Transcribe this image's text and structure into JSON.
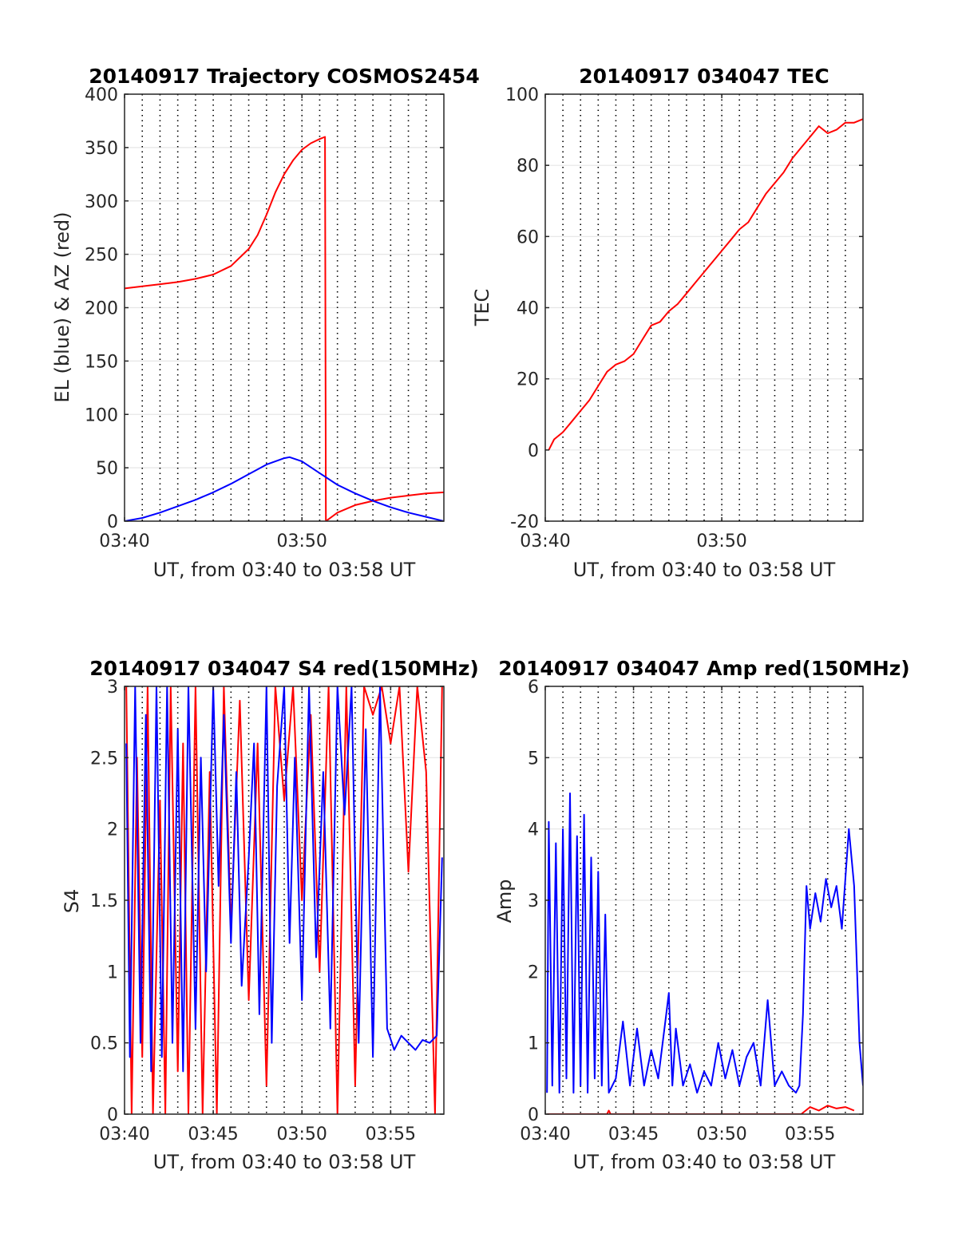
{
  "figure": {
    "background": "#ffffff",
    "axis_color": "#262626",
    "grid_color": "#e6e6e6",
    "series_colors": {
      "red": "#ff0000",
      "blue": "#0000ff"
    }
  },
  "chart_data": [
    {
      "id": "trajectory",
      "type": "line",
      "title": "20140917 Trajectory COSMOS2454",
      "xlabel": "UT, from 03:40 to 03:58 UT",
      "ylabel": "EL (blue) & AZ (red)",
      "x_unit": "minutes after 03:40 UT",
      "xlim": [
        0,
        18
      ],
      "ylim": [
        0,
        400
      ],
      "xticks": [
        0,
        10
      ],
      "xtick_labels": [
        "03:40",
        "03:50"
      ],
      "yticks": [
        0,
        50,
        100,
        150,
        200,
        250,
        300,
        350,
        400
      ],
      "ytick_labels": [
        "0",
        "50",
        "100",
        "150",
        "200",
        "250",
        "300",
        "350",
        "400"
      ],
      "dotted_grid_interval_min": 1,
      "series": [
        {
          "color": "#ff0000",
          "x": [
            0,
            1,
            2,
            3,
            4,
            5,
            6,
            7,
            7.5,
            8,
            8.5,
            9,
            9.5,
            10,
            10.5,
            11,
            11.3,
            11.35,
            12,
            13,
            14,
            15,
            16,
            17,
            18
          ],
          "y": [
            218,
            220,
            222,
            224,
            227,
            231,
            239,
            255,
            268,
            287,
            308,
            325,
            338,
            348,
            354,
            358,
            360,
            0,
            8,
            15,
            19,
            22,
            24,
            26,
            27
          ]
        },
        {
          "color": "#0000ff",
          "x": [
            0,
            1,
            2,
            3,
            4,
            5,
            6,
            7,
            8,
            9,
            9.3,
            10,
            11,
            12,
            13,
            14,
            15,
            16,
            17,
            18
          ],
          "y": [
            0,
            3,
            8,
            14,
            20,
            27,
            35,
            44,
            53,
            59,
            60,
            56,
            45,
            34,
            26,
            19,
            13,
            8,
            4,
            0
          ]
        }
      ]
    },
    {
      "id": "tec",
      "type": "line",
      "title": "20140917 034047 TEC",
      "xlabel": "UT, from 03:40 to 03:58 UT",
      "ylabel": "TEC",
      "x_unit": "minutes after 03:40 UT",
      "xlim": [
        0,
        18
      ],
      "ylim": [
        -20,
        100
      ],
      "xticks": [
        0,
        10
      ],
      "xtick_labels": [
        "03:40",
        "03:50"
      ],
      "yticks": [
        -20,
        0,
        20,
        40,
        60,
        80,
        100
      ],
      "ytick_labels": [
        "-20",
        "0",
        "20",
        "40",
        "60",
        "80",
        "100"
      ],
      "dotted_grid_interval_min": 1,
      "series": [
        {
          "color": "#ff0000",
          "x": [
            0.2,
            0.5,
            1,
            1.5,
            2,
            2.5,
            3,
            3.5,
            4,
            4.5,
            5,
            5.5,
            6,
            6.5,
            7,
            7.5,
            8,
            8.5,
            9,
            9.5,
            10,
            10.5,
            11,
            11.5,
            12,
            12.5,
            13,
            13.5,
            14,
            14.5,
            15,
            15.5,
            16,
            16.5,
            17,
            17.5,
            18
          ],
          "y": [
            0,
            3,
            5,
            8,
            11,
            14,
            18,
            22,
            24,
            25,
            27,
            31,
            35,
            36,
            39,
            41,
            44,
            47,
            50,
            53,
            56,
            59,
            62,
            64,
            68,
            72,
            75,
            78,
            82,
            85,
            88,
            91,
            89,
            90,
            92,
            92,
            93
          ]
        }
      ]
    },
    {
      "id": "s4",
      "type": "line",
      "title": "20140917 034047 S4 red(150MHz)",
      "xlabel": "UT, from 03:40 to 03:58 UT",
      "ylabel": "S4",
      "x_unit": "minutes after 03:40 UT",
      "xlim": [
        0,
        18
      ],
      "ylim": [
        0,
        3
      ],
      "xticks": [
        0,
        5,
        10,
        15
      ],
      "xtick_labels": [
        "03:40",
        "03:45",
        "03:50",
        "03:55"
      ],
      "yticks": [
        0,
        0.5,
        1,
        1.5,
        2,
        2.5,
        3
      ],
      "ytick_labels": [
        "0",
        "0.5",
        "1",
        "1.5",
        "2",
        "2.5",
        "3"
      ],
      "dotted_grid_interval_min": 1,
      "series": [
        {
          "color": "#ff0000",
          "x": [
            0.1,
            0.4,
            0.7,
            1.0,
            1.3,
            1.6,
            2.0,
            2.3,
            2.6,
            3.0,
            3.3,
            3.6,
            4.0,
            4.4,
            4.8,
            5.2,
            5.6,
            6.0,
            6.5,
            7.0,
            7.5,
            8.0,
            8.5,
            9.0,
            9.5,
            10.0,
            10.5,
            11.0,
            11.5,
            12.0,
            12.5,
            13.0,
            13.5,
            14.0,
            14.5,
            15.0,
            15.5,
            16.0,
            16.5,
            17.0,
            17.5,
            17.9
          ],
          "y": [
            3,
            0,
            2.5,
            0.4,
            3,
            0,
            2.2,
            0,
            3,
            0.3,
            2.6,
            0,
            3,
            0,
            2.4,
            0,
            3,
            1.3,
            2.9,
            0.8,
            2.6,
            0.2,
            3,
            2.2,
            3,
            1.5,
            2.8,
            1.0,
            3,
            0,
            3,
            0.2,
            3,
            2.8,
            3,
            2.6,
            3,
            1.7,
            3,
            2.4,
            0,
            3
          ]
        },
        {
          "color": "#0000ff",
          "x": [
            0.1,
            0.3,
            0.6,
            0.9,
            1.2,
            1.5,
            1.8,
            2.1,
            2.4,
            2.7,
            3.0,
            3.3,
            3.6,
            4.0,
            4.3,
            4.6,
            5.0,
            5.3,
            5.6,
            6.0,
            6.3,
            6.6,
            7.0,
            7.3,
            7.6,
            8.0,
            8.3,
            8.6,
            9.0,
            9.3,
            9.6,
            10.0,
            10.4,
            10.8,
            11.2,
            11.6,
            12.0,
            12.4,
            12.8,
            13.2,
            13.6,
            14.0,
            14.4,
            14.8,
            15.2,
            15.6,
            16.0,
            16.4,
            16.8,
            17.2,
            17.6,
            17.9
          ],
          "y": [
            2.6,
            0.4,
            3,
            0.5,
            2.8,
            0.3,
            3,
            0.4,
            3,
            0.5,
            2.7,
            0.3,
            3,
            0.6,
            2.5,
            1.0,
            3,
            1.6,
            2.8,
            1.2,
            2.4,
            0.9,
            1.8,
            2.6,
            0.7,
            3,
            0.5,
            2.3,
            3,
            1.2,
            2.5,
            0.8,
            3,
            1.1,
            2.4,
            0.6,
            3,
            2.1,
            3,
            0.5,
            2.7,
            0.4,
            3,
            0.6,
            0.45,
            0.55,
            0.5,
            0.45,
            0.52,
            0.5,
            0.55,
            1.8
          ]
        }
      ]
    },
    {
      "id": "amp",
      "type": "line",
      "title": "20140917 034047 Amp red(150MHz)",
      "xlabel": "UT, from 03:40 to 03:58 UT",
      "ylabel": "Amp",
      "x_unit": "minutes after 03:40 UT",
      "xlim": [
        0,
        18
      ],
      "ylim": [
        0,
        6
      ],
      "xticks": [
        0,
        5,
        10,
        15
      ],
      "xtick_labels": [
        "03:40",
        "03:45",
        "03:50",
        "03:55"
      ],
      "yticks": [
        0,
        1,
        2,
        3,
        4,
        5,
        6
      ],
      "ytick_labels": [
        "0",
        "1",
        "2",
        "3",
        "4",
        "5",
        "6"
      ],
      "dotted_grid_interval_min": 1,
      "series": [
        {
          "color": "#ff0000",
          "x": [
            0.1,
            3.5,
            3.6,
            3.7,
            14.5,
            15.0,
            15.5,
            16.0,
            16.5,
            17.0,
            17.5
          ],
          "y": [
            0,
            0,
            0.05,
            0,
            0,
            0.1,
            0.05,
            0.12,
            0.08,
            0.1,
            0.05
          ]
        },
        {
          "color": "#0000ff",
          "x": [
            0.1,
            0.2,
            0.4,
            0.6,
            0.8,
            1.0,
            1.2,
            1.4,
            1.6,
            1.8,
            2.0,
            2.2,
            2.4,
            2.6,
            2.8,
            3.0,
            3.2,
            3.4,
            3.6,
            4.0,
            4.4,
            4.8,
            5.2,
            5.6,
            6.0,
            6.4,
            6.8,
            7.0,
            7.2,
            7.4,
            7.8,
            8.2,
            8.6,
            9.0,
            9.4,
            9.8,
            10.2,
            10.6,
            11.0,
            11.4,
            11.8,
            12.2,
            12.6,
            13.0,
            13.4,
            13.8,
            14.2,
            14.4,
            14.6,
            14.8,
            15.0,
            15.3,
            15.6,
            15.9,
            16.2,
            16.5,
            16.8,
            17.0,
            17.2,
            17.5,
            17.8,
            18.0
          ],
          "y": [
            0.3,
            4.1,
            0.4,
            3.8,
            0.3,
            4.0,
            0.5,
            4.5,
            0.3,
            3.9,
            0.4,
            4.2,
            0.3,
            3.6,
            0.5,
            3.4,
            0.4,
            2.8,
            0.3,
            0.5,
            1.3,
            0.4,
            1.2,
            0.4,
            0.9,
            0.5,
            1.3,
            1.7,
            0.4,
            1.2,
            0.4,
            0.7,
            0.3,
            0.6,
            0.4,
            1.0,
            0.5,
            0.9,
            0.4,
            0.8,
            1.0,
            0.4,
            1.6,
            0.4,
            0.6,
            0.4,
            0.3,
            0.4,
            1.4,
            3.2,
            2.6,
            3.1,
            2.7,
            3.3,
            2.9,
            3.2,
            2.6,
            3.3,
            4.0,
            3.2,
            1.0,
            0.4
          ]
        }
      ]
    }
  ]
}
